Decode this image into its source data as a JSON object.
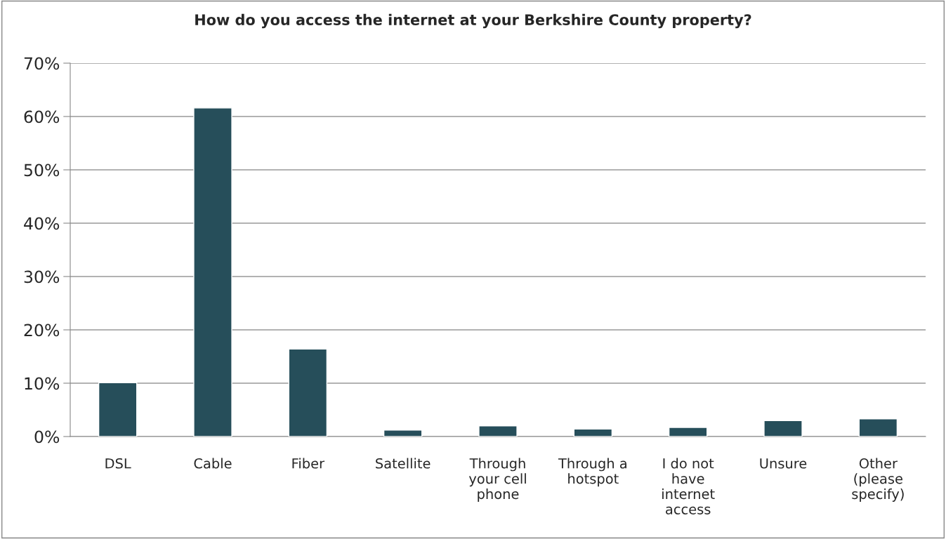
{
  "chart_data": {
    "type": "bar",
    "title": "How do you access the internet at your Berkshire County property?",
    "categories": [
      "DSL",
      "Cable",
      "Fiber",
      "Satellite",
      "Through your cell phone",
      "Through a hotspot",
      "I do not have internet access",
      "Unsure",
      "Other (please specify)"
    ],
    "values": [
      10.1,
      61.6,
      16.4,
      1.2,
      2.0,
      1.4,
      1.7,
      3.0,
      3.3
    ],
    "color": "#264e5a",
    "ylim": [
      0,
      70
    ],
    "yticks": [
      {
        "value": 0,
        "label": "0%"
      },
      {
        "value": 10,
        "label": "10%"
      },
      {
        "value": 20,
        "label": "20%"
      },
      {
        "value": 30,
        "label": "30%"
      },
      {
        "value": 40,
        "label": "40%"
      },
      {
        "value": 50,
        "label": "50%"
      },
      {
        "value": 60,
        "label": "60%"
      },
      {
        "value": 70,
        "label": "70%"
      }
    ],
    "grid": "y",
    "legend": false
  }
}
